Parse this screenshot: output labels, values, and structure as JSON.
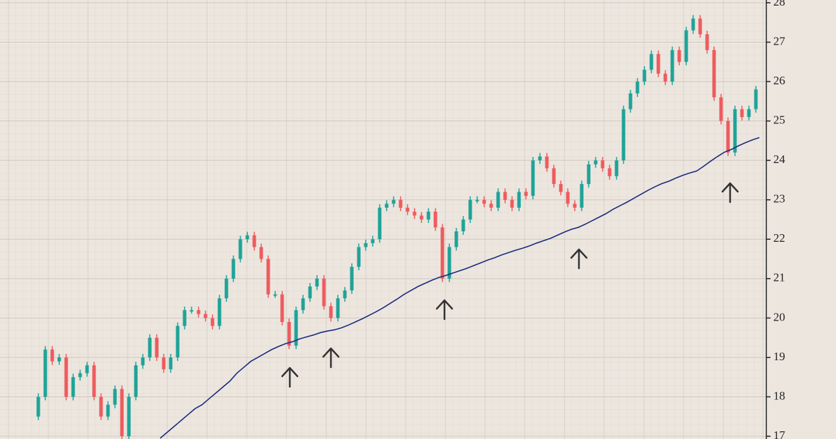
{
  "chart_data": {
    "type": "candlestick",
    "close": [
      17.5,
      18.0,
      19.2,
      18.9,
      19.0,
      18.0,
      18.5,
      18.6,
      18.8,
      18.0,
      17.5,
      17.8,
      18.2,
      17.0,
      18.0,
      18.8,
      19.0,
      19.5,
      19.0,
      18.7,
      19.0,
      19.8,
      20.2,
      20.2,
      20.1,
      20.0,
      19.8,
      20.5,
      21.0,
      21.5,
      22.0,
      22.1,
      21.8,
      21.5,
      20.6,
      20.6,
      19.9,
      19.3,
      20.2,
      20.5,
      20.8,
      21.0,
      20.3,
      20.0,
      20.5,
      20.7,
      21.3,
      21.8,
      21.9,
      22.0,
      22.8,
      22.9,
      23.0,
      22.8,
      22.7,
      22.6,
      22.5,
      22.7,
      22.3,
      21.0,
      21.8,
      22.2,
      22.5,
      23.0,
      23.0,
      22.9,
      22.8,
      23.2,
      23.0,
      22.8,
      23.2,
      23.1,
      24.0,
      24.1,
      23.8,
      23.4,
      23.2,
      22.9,
      22.8,
      23.4,
      23.9,
      24.0,
      23.8,
      23.6,
      24.0,
      25.3,
      25.7,
      26.0,
      26.3,
      26.7,
      26.2,
      26.0,
      26.8,
      26.5,
      27.3,
      27.6,
      27.2,
      26.8,
      25.6,
      25.0,
      24.2,
      25.3,
      25.1,
      25.3,
      25.8
    ],
    "moving_average": [
      null,
      null,
      null,
      null,
      null,
      null,
      null,
      null,
      null,
      null,
      null,
      null,
      null,
      null,
      null,
      null,
      null,
      null,
      16.95,
      17.1,
      17.25,
      17.4,
      17.55,
      17.7,
      17.8,
      17.95,
      18.1,
      18.25,
      18.4,
      18.6,
      18.75,
      18.9,
      19.0,
      19.1,
      19.2,
      19.28,
      19.35,
      19.4,
      19.47,
      19.52,
      19.57,
      19.63,
      19.67,
      19.7,
      19.75,
      19.82,
      19.9,
      19.98,
      20.07,
      20.16,
      20.26,
      20.37,
      20.48,
      20.6,
      20.7,
      20.8,
      20.88,
      20.96,
      21.03,
      21.08,
      21.14,
      21.2,
      21.26,
      21.33,
      21.4,
      21.47,
      21.53,
      21.6,
      21.66,
      21.72,
      21.77,
      21.83,
      21.9,
      21.96,
      22.02,
      22.1,
      22.18,
      22.25,
      22.3,
      22.38,
      22.47,
      22.56,
      22.65,
      22.76,
      22.85,
      22.94,
      23.04,
      23.14,
      23.24,
      23.33,
      23.41,
      23.47,
      23.55,
      23.62,
      23.68,
      23.73,
      23.85,
      23.98,
      24.1,
      24.21,
      24.28,
      24.37,
      24.45,
      24.52,
      24.58
    ],
    "up_color": "#1fa398",
    "down_color": "#ee5b5e",
    "ma_color": "#1b2a7e",
    "ylim": [
      16.93,
      28.07
    ],
    "yticks": [
      17,
      18,
      19,
      20,
      21,
      22,
      23,
      24,
      25,
      26,
      27,
      28
    ],
    "grid": true
  }
}
